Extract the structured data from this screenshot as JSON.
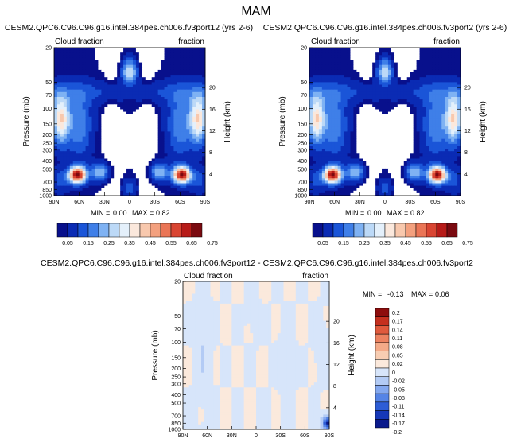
{
  "figure": {
    "title": "MAM"
  },
  "colors": {
    "cloud_scale": [
      "#08108c",
      "#0a2bb4",
      "#1a55d8",
      "#3f7fe8",
      "#7fb2f3",
      "#bcd9f7",
      "#e4f0fb",
      "#fbe8dc",
      "#f8c8ad",
      "#f3a07e",
      "#ea7556",
      "#d94532",
      "#b71b18",
      "#7a0a10"
    ],
    "diff_scale": [
      "#0a1a8c",
      "#1638b8",
      "#2d5dd6",
      "#5584e6",
      "#84a8ef",
      "#b3cbf5",
      "#d7e5fa",
      "#fbe9dc",
      "#f8cdb2",
      "#f4aa88",
      "#ed8260",
      "#e05a3d",
      "#c5301f",
      "#8e0d0d"
    ]
  },
  "chart_data": [
    {
      "type": "heatmap",
      "id": "panel-1",
      "title": "CESM2.QPC6.C96.C96.g16.intel.384pes.ch006.fv3port12 (yrs 2-6)",
      "top_left_label": "Cloud fraction",
      "top_right_label": "fraction",
      "xlabel": "",
      "ylabel": "Pressure (mb)",
      "y2label": "Height (km)",
      "x_ticks": [
        "90N",
        "60N",
        "30N",
        "0",
        "30S",
        "60S",
        "90S"
      ],
      "y_ticks": [
        "20",
        "50",
        "70",
        "100",
        "150",
        "200",
        "250",
        "300",
        "400",
        "500",
        "700",
        "850",
        "1000"
      ],
      "y_tick_values": [
        20,
        50,
        70,
        100,
        150,
        200,
        250,
        300,
        400,
        500,
        700,
        850,
        1000
      ],
      "y2_ticks": [
        "20",
        "16",
        "12",
        "8",
        "4"
      ],
      "y2_tick_values": [
        20,
        16,
        12,
        8,
        4
      ],
      "ylim": [
        20,
        1000
      ],
      "min_label": "MIN = ",
      "min_value": "0.00",
      "max_label": "MAX = ",
      "max_value": "0.82",
      "colorbar_labels": [
        "0.05",
        "0.15",
        "0.25",
        "0.35",
        "0.45",
        "0.55",
        "0.65",
        "0.75"
      ]
    },
    {
      "type": "heatmap",
      "id": "panel-2",
      "title": "CESM2.QPC6.C96.C96.g16.intel.384pes.ch006.fv3port2 (yrs 2-6)",
      "top_left_label": "Cloud fraction",
      "top_right_label": "fraction",
      "xlabel": "",
      "ylabel": "Pressure (mb)",
      "y2label": "Height (km)",
      "x_ticks": [
        "90N",
        "60N",
        "30N",
        "0",
        "30S",
        "60S",
        "90S"
      ],
      "y_ticks": [
        "20",
        "50",
        "70",
        "100",
        "150",
        "200",
        "250",
        "300",
        "400",
        "500",
        "700",
        "850",
        "1000"
      ],
      "y_tick_values": [
        20,
        50,
        70,
        100,
        150,
        200,
        250,
        300,
        400,
        500,
        700,
        850,
        1000
      ],
      "y2_ticks": [
        "20",
        "16",
        "12",
        "8",
        "4"
      ],
      "y2_tick_values": [
        20,
        16,
        12,
        8,
        4
      ],
      "ylim": [
        20,
        1000
      ],
      "min_label": "MIN = ",
      "min_value": "0.00",
      "max_label": "MAX = ",
      "max_value": "0.82",
      "colorbar_labels": [
        "0.05",
        "0.15",
        "0.25",
        "0.35",
        "0.45",
        "0.55",
        "0.65",
        "0.75"
      ]
    },
    {
      "type": "heatmap",
      "id": "panel-diff",
      "title": "CESM2.QPC6.C96.C96.g16.intel.384pes.ch006.fv3port12 - CESM2.QPC6.C96.C96.g16.intel.384pes.ch006.fv3port2",
      "top_left_label": "Cloud fraction",
      "top_right_label": "fraction",
      "xlabel": "",
      "ylabel": "Pressure (mb)",
      "y2label": "Height (km)",
      "x_ticks": [
        "90N",
        "60N",
        "30N",
        "0",
        "30S",
        "60S",
        "90S"
      ],
      "y_ticks": [
        "20",
        "50",
        "70",
        "100",
        "150",
        "200",
        "250",
        "300",
        "400",
        "500",
        "700",
        "850",
        "1000"
      ],
      "y_tick_values": [
        20,
        50,
        70,
        100,
        150,
        200,
        250,
        300,
        400,
        500,
        700,
        850,
        1000
      ],
      "y2_ticks": [
        "20",
        "16",
        "12",
        "8",
        "4"
      ],
      "y2_tick_values": [
        20,
        16,
        12,
        8,
        4
      ],
      "ylim": [
        20,
        1000
      ],
      "min_label": "MIN = ",
      "min_value": "-0.13",
      "max_label": "MAX = ",
      "max_value": "0.06",
      "colorbar_labels": [
        "0.2",
        "0.17",
        "0.14",
        "0.11",
        "0.08",
        "0.05",
        "0.02",
        "0",
        "-0.02",
        "-0.05",
        "-0.08",
        "-0.11",
        "-0.14",
        "-0.17",
        "-0.2"
      ]
    }
  ]
}
